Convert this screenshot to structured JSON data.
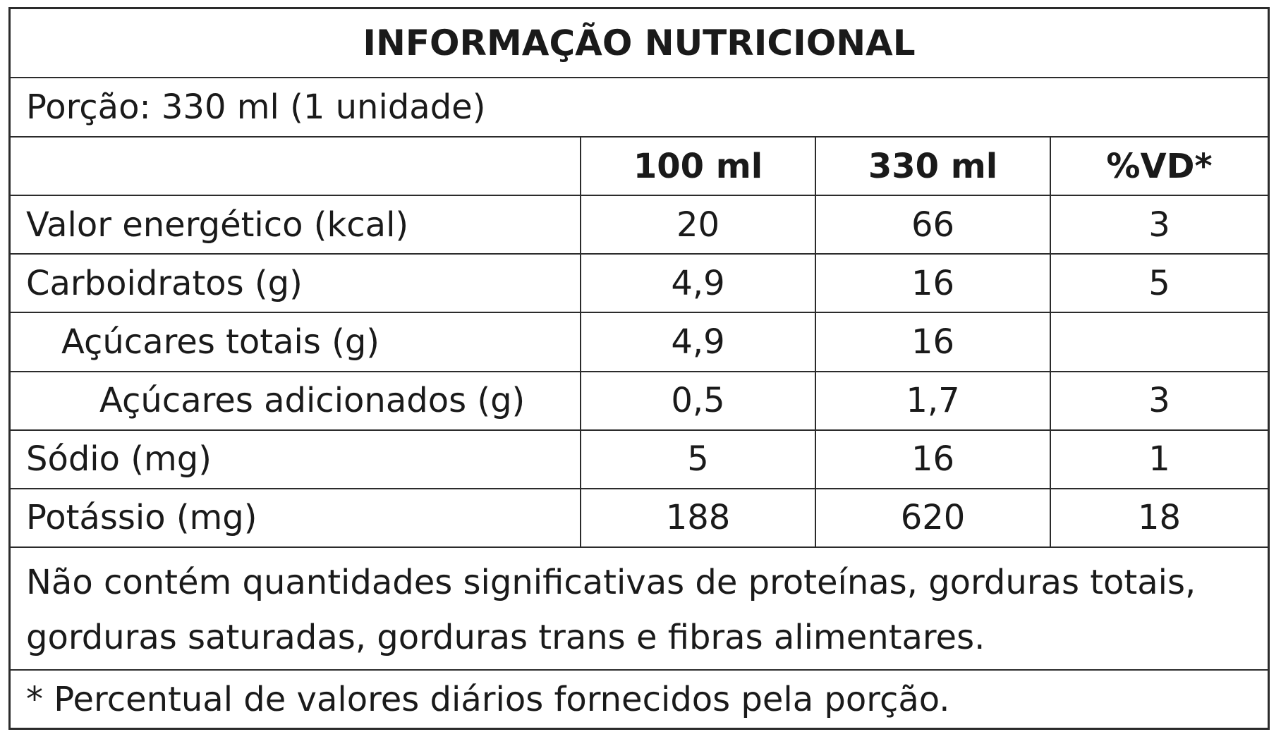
{
  "title": "INFORMAÇÃO NUTRICIONAL",
  "portion": "Porção: 330 ml (1 unidade)",
  "headers": [
    "",
    "100 ml",
    "330 ml",
    "%VD*"
  ],
  "rows": [
    {
      "name": "Valor energético (kcal)",
      "per100": "20",
      "per330": "66",
      "vd": "3"
    },
    {
      "name": "Carboidratos (g)",
      "per100": "4,9",
      "per330": "16",
      "vd": "5"
    },
    {
      "name": "Açúcares totais (g)",
      "per100": "4,9",
      "per330": "16",
      "vd": ""
    },
    {
      "name": "Açúcares adicionados (g)",
      "per100": "0,5",
      "per330": "1,7",
      "vd": "3"
    },
    {
      "name": "Sódio (mg)",
      "per100": "5",
      "per330": "16",
      "vd": "1"
    },
    {
      "name": "Potássio (mg)",
      "per100": "188",
      "per330": "620",
      "vd": "18"
    }
  ],
  "note": "Não contém quantidades significativas de proteínas, gorduras totais, gorduras saturadas, gorduras trans e fibras alimentares.",
  "footnote": "* Percentual de valores diários fornecidos pela porção."
}
